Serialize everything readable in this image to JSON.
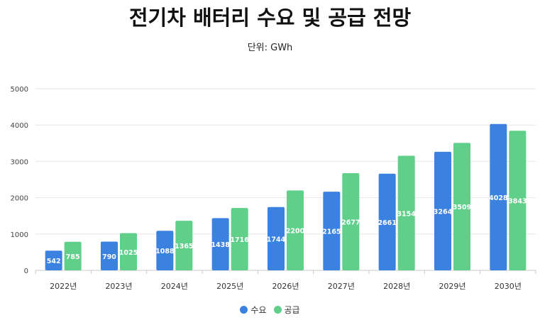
{
  "colors": {
    "demand": "#3b82e0",
    "supply": "#5fcf8a",
    "grid": "#e6e6e6",
    "axis": "#c8c8c8"
  },
  "chart_data": {
    "type": "bar",
    "title": "전기차 배터리 수요 및 공급 전망",
    "subtitle": "단위: GWh",
    "categories": [
      "2022년",
      "2023년",
      "2024년",
      "2025년",
      "2026년",
      "2027년",
      "2028년",
      "2029년",
      "2030년"
    ],
    "series": [
      {
        "name": "수요",
        "values": [
          542,
          790,
          1088,
          1438,
          1744,
          2165,
          2661,
          3264,
          4028
        ]
      },
      {
        "name": "공급",
        "values": [
          785,
          1025,
          1365,
          1716,
          2200,
          2677,
          3154,
          3509,
          3843
        ]
      }
    ],
    "ylim": [
      0,
      5000
    ],
    "yticks": [
      0,
      1000,
      2000,
      3000,
      4000,
      5000
    ],
    "grid": true,
    "legend": "bottom"
  }
}
